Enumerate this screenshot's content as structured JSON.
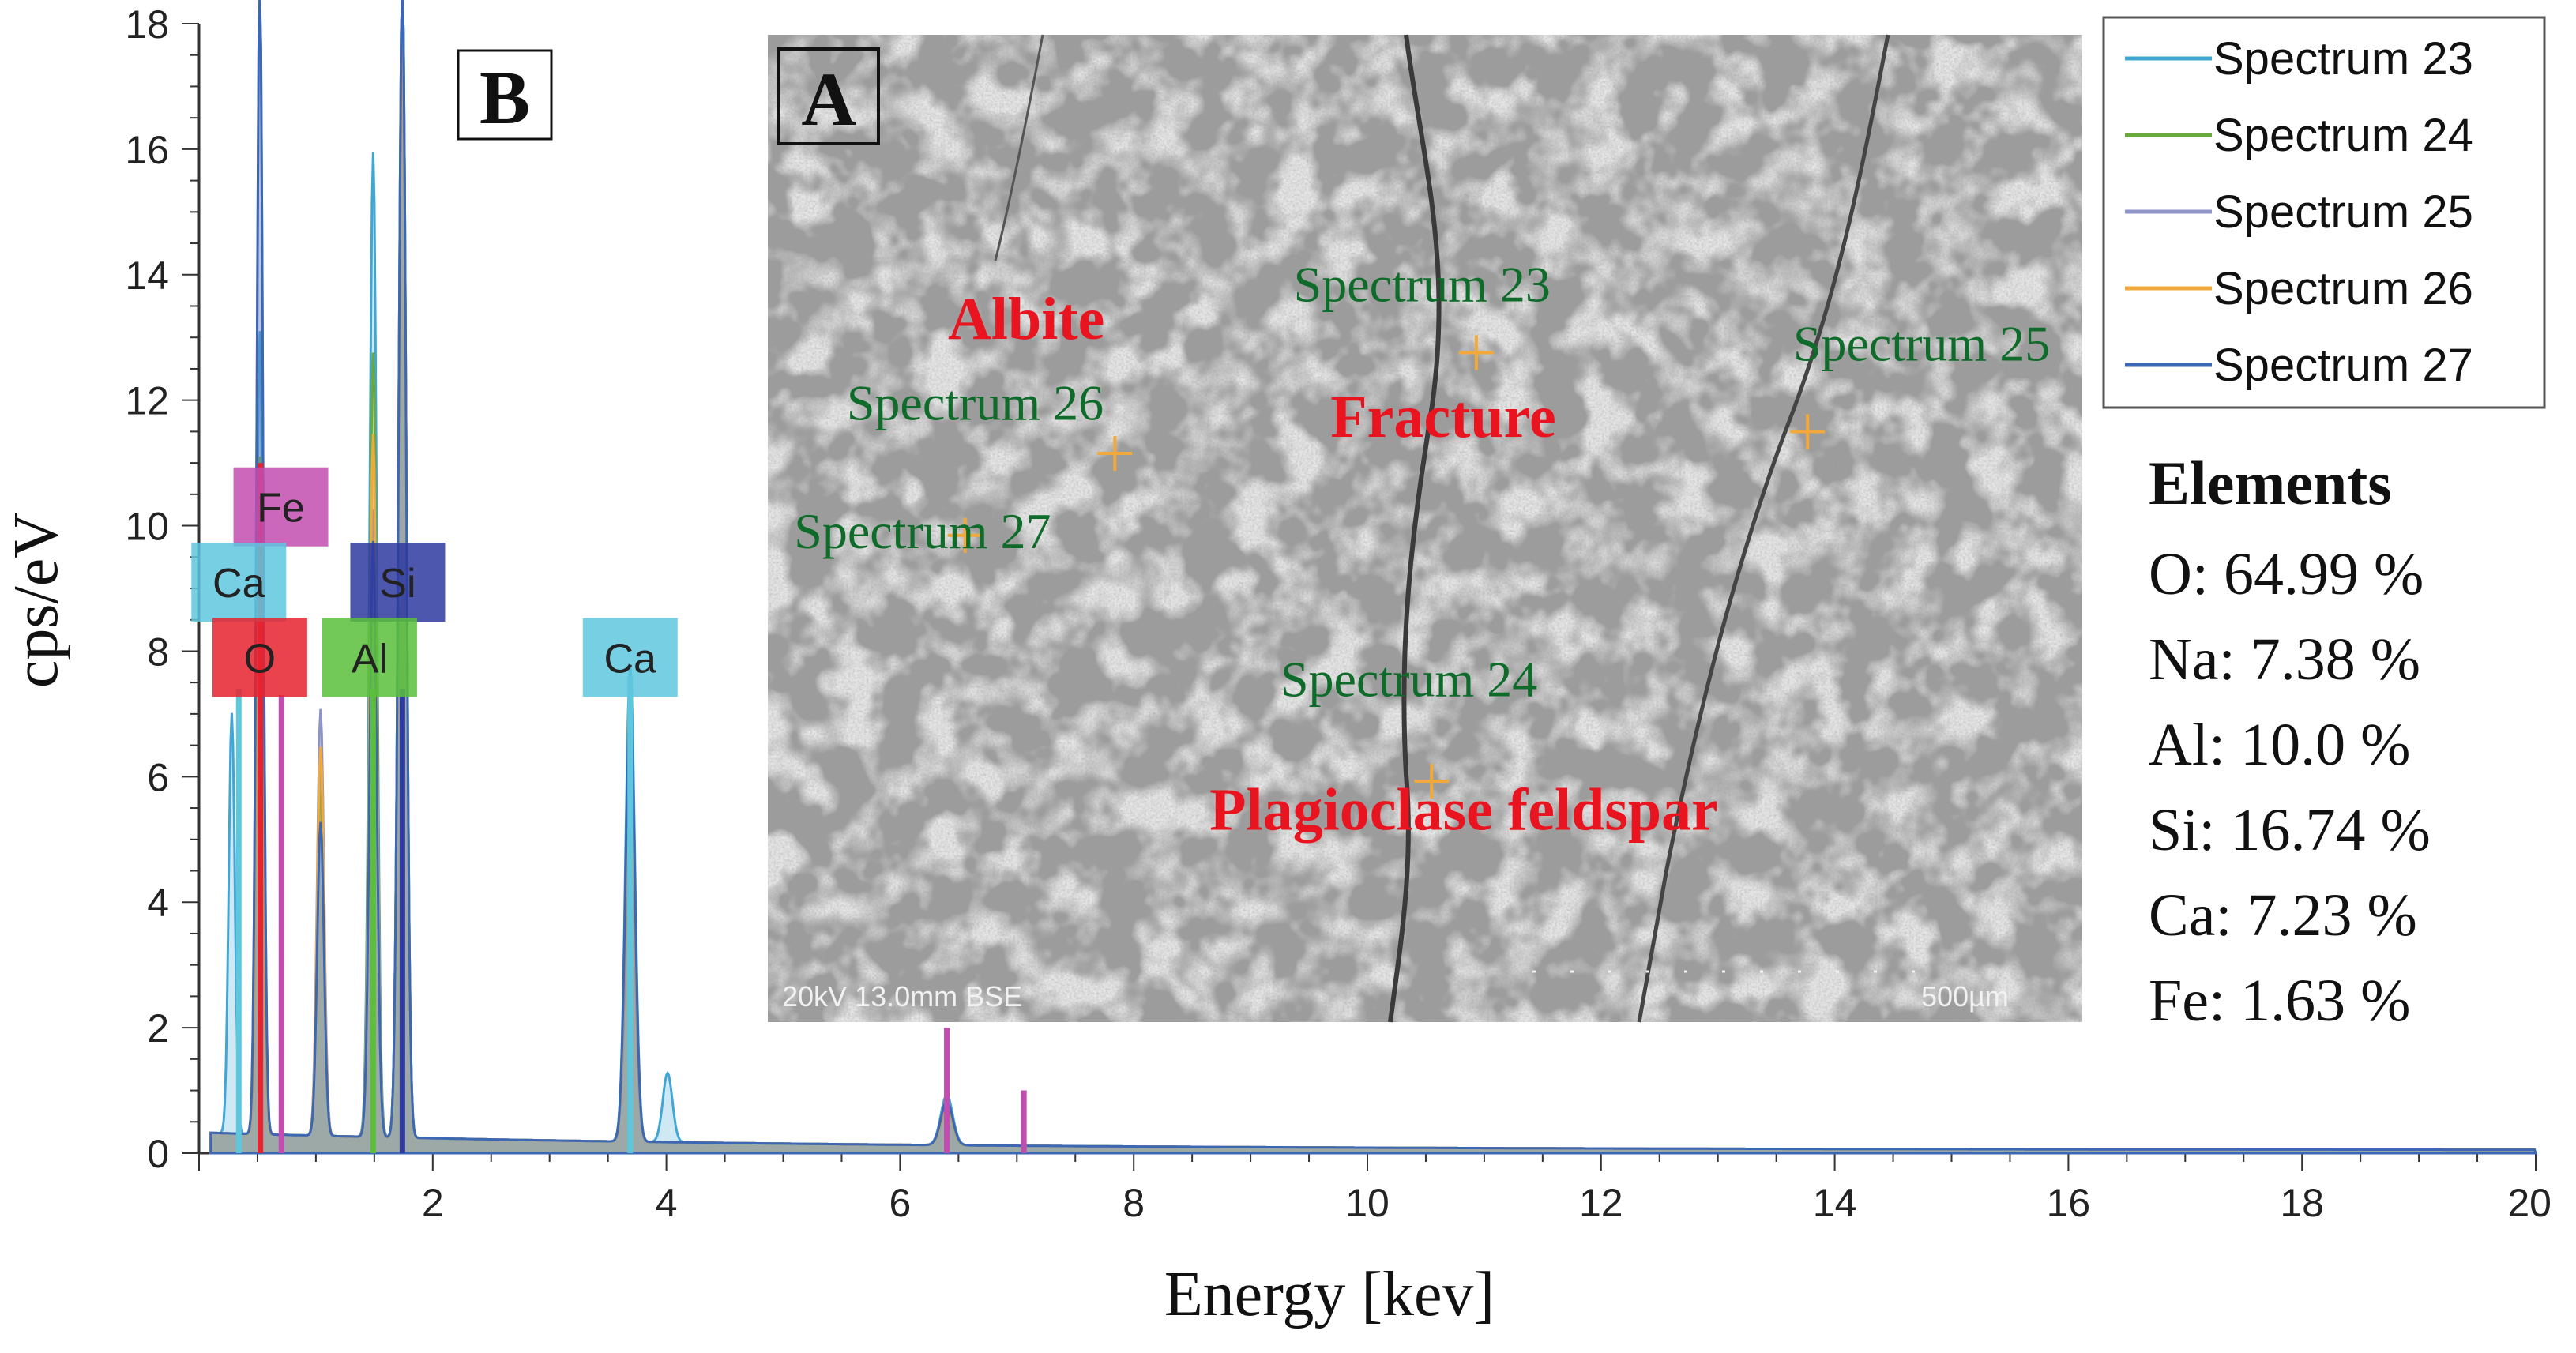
{
  "chart_data": {
    "type": "line",
    "title": "",
    "xlabel": "Energy [kev]",
    "ylabel": "cps/eV",
    "xlim": [
      0,
      20
    ],
    "ylim": [
      0,
      18
    ],
    "x_ticks": [
      "2",
      "4",
      "6",
      "8",
      "10",
      "12",
      "14",
      "16",
      "18",
      "20"
    ],
    "y_ticks": [
      "0",
      "2",
      "4",
      "6",
      "8",
      "10",
      "12",
      "14",
      "16",
      "18"
    ],
    "series": [
      {
        "name": "Spectrum 23",
        "color": "#41a6d4",
        "peaks": [
          {
            "x": 0.28,
            "y": 6.7
          },
          {
            "x": 0.52,
            "y": 12.8
          },
          {
            "x": 1.04,
            "y": 5.9
          },
          {
            "x": 1.49,
            "y": 15.7
          },
          {
            "x": 1.74,
            "y": 18.5
          },
          {
            "x": 3.69,
            "y": 7.6
          },
          {
            "x": 4.01,
            "y": 1.1
          },
          {
            "x": 6.4,
            "y": 0.8
          }
        ]
      },
      {
        "name": "Spectrum 24",
        "color": "#6aaa3c",
        "peaks": [
          {
            "x": 0.52,
            "y": 10.8
          },
          {
            "x": 1.04,
            "y": 5.5
          },
          {
            "x": 1.49,
            "y": 12.5
          },
          {
            "x": 1.74,
            "y": 18.5
          },
          {
            "x": 3.69,
            "y": 6.8
          },
          {
            "x": 6.4,
            "y": 0.6
          }
        ]
      },
      {
        "name": "Spectrum 25",
        "color": "#8e95c6",
        "peaks": [
          {
            "x": 0.52,
            "y": 18.5
          },
          {
            "x": 1.04,
            "y": 6.8
          },
          {
            "x": 1.49,
            "y": 10.0
          },
          {
            "x": 1.74,
            "y": 18.5
          },
          {
            "x": 3.69,
            "y": 5.5
          },
          {
            "x": 6.4,
            "y": 0.7
          }
        ]
      },
      {
        "name": "Spectrum 26",
        "color": "#f2a93b",
        "peaks": [
          {
            "x": 0.52,
            "y": 9.8
          },
          {
            "x": 1.04,
            "y": 6.2
          },
          {
            "x": 1.49,
            "y": 11.2
          },
          {
            "x": 1.74,
            "y": 17.5
          },
          {
            "x": 3.69,
            "y": 6.2
          },
          {
            "x": 6.4,
            "y": 0.6
          }
        ]
      },
      {
        "name": "Spectrum 27",
        "color": "#3b67b5",
        "peaks": [
          {
            "x": 0.52,
            "y": 18.5
          },
          {
            "x": 1.04,
            "y": 5.0
          },
          {
            "x": 1.49,
            "y": 9.5
          },
          {
            "x": 1.74,
            "y": 18.5
          },
          {
            "x": 3.69,
            "y": 7.0
          },
          {
            "x": 6.4,
            "y": 0.7
          }
        ]
      }
    ],
    "element_lines": [
      {
        "element": "Fe",
        "x": 0.705,
        "y": 7.3,
        "color": "#c24db0"
      },
      {
        "element": "Fe",
        "x": 6.4,
        "y": 2.0,
        "color": "#c24db0"
      },
      {
        "element": "Fe",
        "x": 7.06,
        "y": 1.0,
        "color": "#c24db0"
      },
      {
        "element": "O",
        "x": 0.525,
        "y": 11.0,
        "color": "#e8222e"
      },
      {
        "element": "Ca",
        "x": 0.34,
        "y": 7.4,
        "color": "#5ec7de"
      },
      {
        "element": "Ca",
        "x": 3.69,
        "y": 7.6,
        "color": "#5ec7de"
      },
      {
        "element": "Al",
        "x": 1.49,
        "y": 7.4,
        "color": "#5bbf3a"
      },
      {
        "element": "Si",
        "x": 1.74,
        "y": 7.4,
        "color": "#2e3aa0"
      }
    ],
    "element_labels": [
      {
        "text": "Fe",
        "x": 0.7,
        "y": 10.3,
        "color": "#c24db0"
      },
      {
        "text": "Ca",
        "x": 0.34,
        "y": 9.1,
        "color": "#5ec7de"
      },
      {
        "text": "Si",
        "x": 1.7,
        "y": 9.1,
        "color": "#2e3aa0"
      },
      {
        "text": "O",
        "x": 0.52,
        "y": 7.9,
        "color": "#e8222e"
      },
      {
        "text": "Al",
        "x": 1.46,
        "y": 7.9,
        "color": "#5bbf3a"
      },
      {
        "text": "Ca",
        "x": 3.69,
        "y": 7.9,
        "color": "#5ec7de"
      }
    ],
    "legend_position": "top-right"
  },
  "panel_b_label": "B",
  "panel_a_label": "A",
  "elements": {
    "title": "Elements",
    "rows": [
      "O: 64.99 %",
      "Na: 7.38 %",
      "Al: 10.0 %",
      "Si: 16.74 %",
      "Ca: 7.23 %",
      "Fe: 1.63 %"
    ]
  },
  "sem_image": {
    "spectrum_labels": [
      {
        "text": "Spectrum 23",
        "mx": 0.4,
        "my": 0.27
      },
      {
        "text": "Spectrum 25",
        "mx": 0.78,
        "my": 0.33
      },
      {
        "text": "Spectrum 26",
        "mx": 0.06,
        "my": 0.39
      },
      {
        "text": "Spectrum 27",
        "mx": 0.02,
        "my": 0.52
      },
      {
        "text": "Spectrum 24",
        "mx": 0.39,
        "my": 0.67
      }
    ],
    "markers": [
      {
        "name": "Spectrum 23",
        "mx": 0.539,
        "my": 0.322
      },
      {
        "name": "Spectrum 25",
        "mx": 0.791,
        "my": 0.402
      },
      {
        "name": "Spectrum 26",
        "mx": 0.264,
        "my": 0.424
      },
      {
        "name": "Spectrum 27",
        "mx": 0.15,
        "my": 0.507
      },
      {
        "name": "Spectrum 24",
        "mx": 0.505,
        "my": 0.756
      }
    ],
    "minerals": [
      {
        "text": "Albite",
        "mx": 0.137,
        "my": 0.308
      },
      {
        "text": "Fracture",
        "mx": 0.428,
        "my": 0.407
      },
      {
        "text": "Plagioclase feldspar",
        "mx": 0.336,
        "my": 0.805
      }
    ],
    "info_left": "20kV 13.0mm BSE",
    "info_right": "500µm",
    "marker_color": "#f2a93b"
  }
}
